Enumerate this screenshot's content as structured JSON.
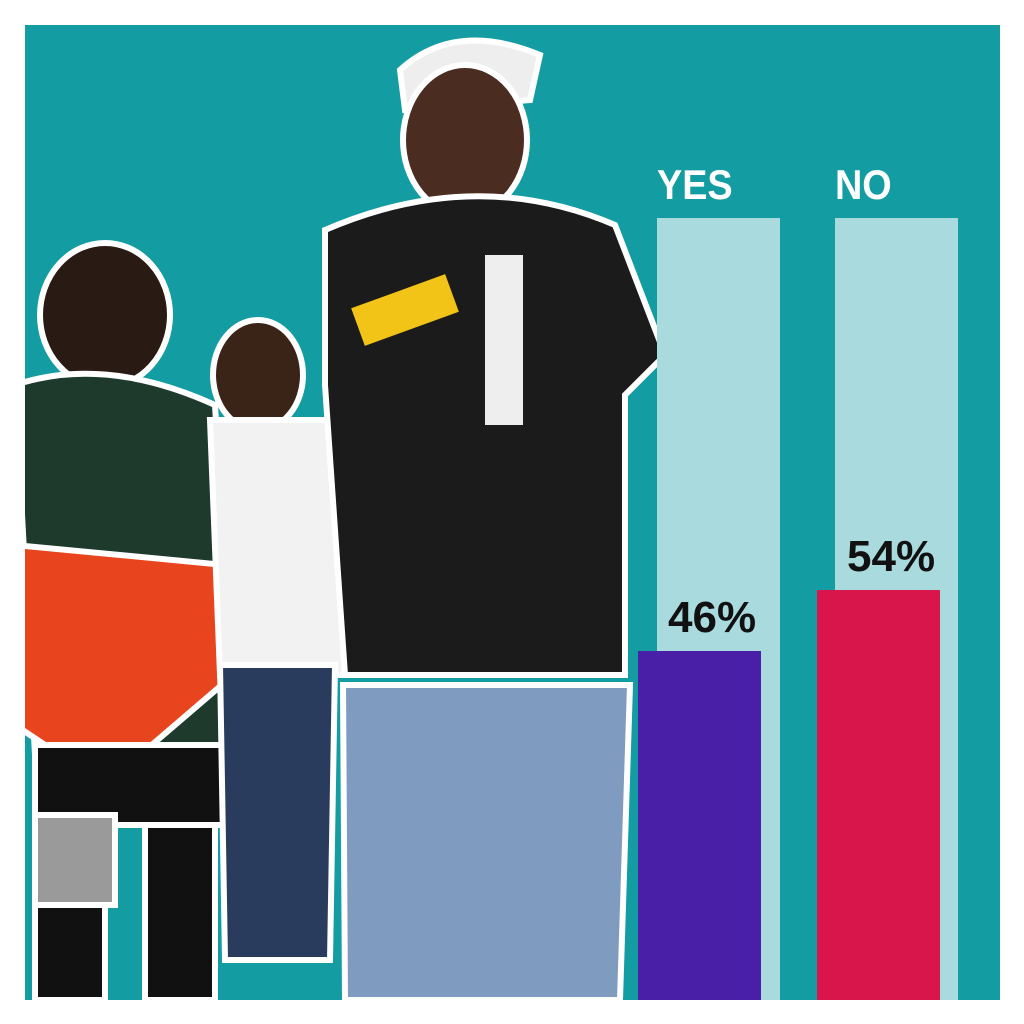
{
  "chart_data": {
    "type": "bar",
    "categories": [
      "YES",
      "NO"
    ],
    "values": [
      46,
      54
    ],
    "value_labels": [
      "46%",
      "54%"
    ],
    "ylim": [
      0,
      100
    ],
    "colors": {
      "background": "#139ca1",
      "track": "#a9dbde",
      "YES": "#4a1fa8",
      "NO": "#d9164c"
    },
    "grid": false
  }
}
